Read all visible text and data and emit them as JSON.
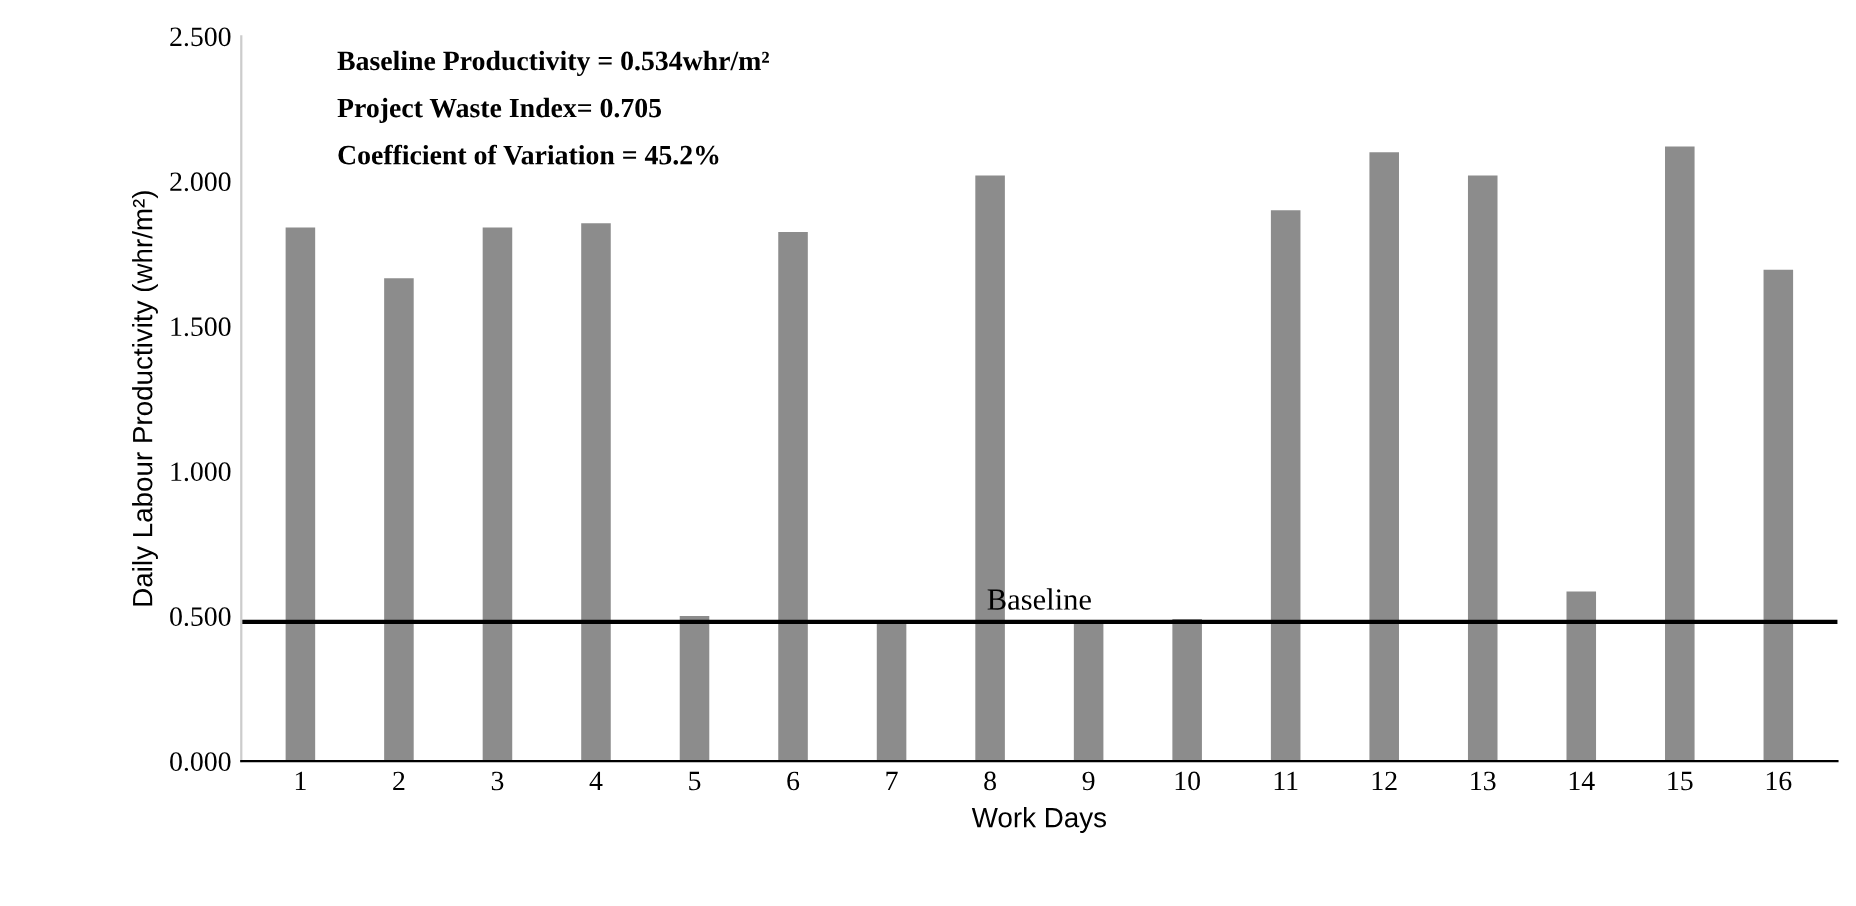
{
  "chart_data": {
    "type": "bar",
    "xlabel": "Work Days",
    "ylabel": "Daily Labour Productivity (whr/m²)",
    "categories": [
      "1",
      "2",
      "3",
      "4",
      "5",
      "6",
      "7",
      "8",
      "9",
      "10",
      "11",
      "12",
      "13",
      "14",
      "15",
      "16"
    ],
    "values": [
      1.84,
      1.665,
      1.84,
      1.855,
      0.5,
      1.825,
      0.48,
      2.02,
      0.48,
      0.49,
      1.9,
      2.1,
      2.02,
      0.585,
      2.12,
      1.695
    ],
    "color": "#8c8c8c",
    "ylim": [
      0,
      2.5
    ],
    "yticks": [
      {
        "value": 0,
        "label": "0.000"
      },
      {
        "value": 0.5,
        "label": "0.500"
      },
      {
        "value": 1,
        "label": "1.000"
      },
      {
        "value": 1.5,
        "label": "1.500"
      },
      {
        "value": 2,
        "label": "2.000"
      },
      {
        "value": 2.5,
        "label": "2.500"
      }
    ],
    "ref_lines": [
      {
        "axis": "y",
        "value": 0.48,
        "label": "Baseline",
        "color": "#000000"
      }
    ],
    "annotations": [
      "Baseline Productivity = 0.534whr/m²",
      "Project Waste Index= 0.705",
      "Coefficient of Variation = 45.2%"
    ],
    "grid": false,
    "legend": false
  }
}
